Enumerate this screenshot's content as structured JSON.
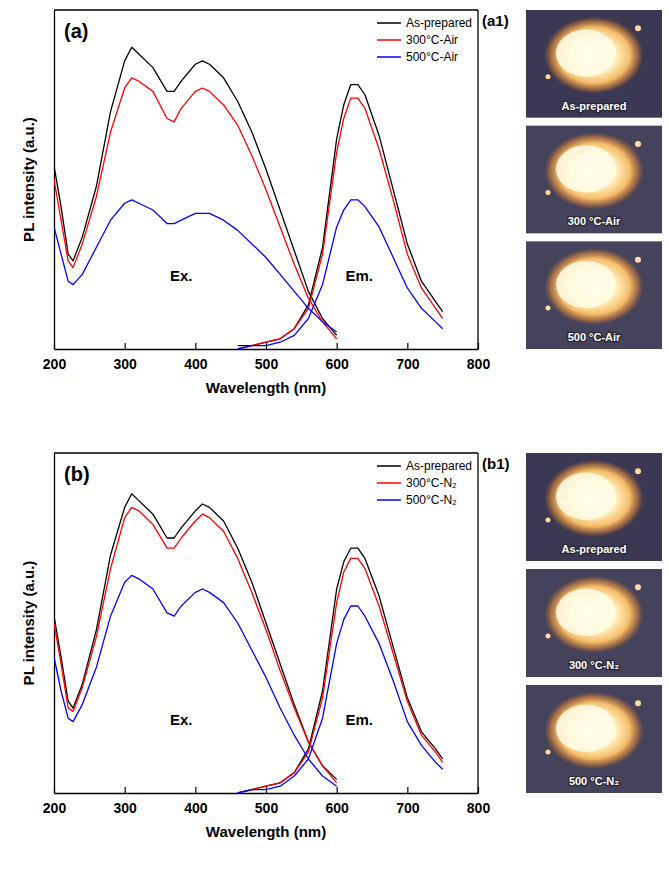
{
  "chart_data": [
    {
      "type": "line",
      "panel_label": "(a)",
      "xlabel": "Wavelength (nm)",
      "ylabel": "PL intensity (a.u.)",
      "annotations": [
        "Ex.",
        "Em."
      ],
      "xlim": [
        200,
        800
      ],
      "xticks": [
        200,
        300,
        400,
        500,
        600,
        700,
        800
      ],
      "ylim": [
        0,
        100
      ],
      "tick_labels": "x",
      "legend": "upper right",
      "excitation_x": [
        200,
        210,
        220,
        227,
        240,
        260,
        280,
        300,
        310,
        320,
        340,
        360,
        370,
        380,
        400,
        410,
        420,
        440,
        460,
        480,
        500,
        520,
        540,
        560,
        580,
        600
      ],
      "emission_x": [
        460,
        480,
        500,
        520,
        540,
        560,
        580,
        600,
        610,
        620,
        630,
        640,
        660,
        680,
        700,
        720,
        740,
        750
      ],
      "series": [
        {
          "name": "As-prepared",
          "color": "#000000",
          "excitation": [
            54,
            42,
            28,
            26,
            33,
            48,
            70,
            85,
            89,
            87,
            83,
            76,
            76,
            79,
            84,
            85,
            84,
            80,
            73,
            64,
            53,
            41,
            29,
            17,
            9,
            4
          ],
          "emission": [
            1,
            1,
            2,
            3,
            6,
            13,
            30,
            62,
            72,
            78,
            78,
            75,
            63,
            47,
            31,
            20,
            14,
            11
          ]
        },
        {
          "name": "300°C-Air",
          "color": "#ff0000",
          "excitation": [
            50,
            38,
            26,
            24,
            31,
            45,
            64,
            77,
            80,
            79,
            76,
            68,
            67,
            71,
            76,
            77,
            76,
            72,
            66,
            57,
            47,
            36,
            25,
            15,
            8,
            3
          ],
          "emission": [
            0,
            1,
            2,
            3,
            6,
            12,
            28,
            58,
            68,
            74,
            74,
            71,
            59,
            44,
            28,
            18,
            12,
            9
          ]
        },
        {
          "name": "500°C-Air",
          "color": "#0000ff",
          "excitation": [
            36,
            28,
            20,
            19,
            22,
            30,
            38,
            43,
            44,
            43,
            41,
            37,
            37,
            38,
            40,
            40,
            40,
            38,
            35,
            31,
            27,
            22,
            17,
            12,
            8,
            5
          ],
          "emission": [
            0,
            1,
            1,
            2,
            4,
            9,
            19,
            36,
            41,
            44,
            44,
            42,
            36,
            27,
            18,
            12,
            8,
            6
          ]
        }
      ]
    },
    {
      "type": "line",
      "panel_label": "(b)",
      "xlabel": "Wavelength (nm)",
      "ylabel": "PL intensity (a.u.)",
      "annotations": [
        "Ex.",
        "Em."
      ],
      "xlim": [
        200,
        800
      ],
      "xticks": [
        200,
        300,
        400,
        500,
        600,
        700,
        800
      ],
      "ylim": [
        0,
        100
      ],
      "tick_labels": "x",
      "legend": "upper right",
      "excitation_x": [
        200,
        210,
        220,
        227,
        240,
        260,
        280,
        300,
        310,
        320,
        340,
        360,
        370,
        380,
        400,
        410,
        420,
        440,
        460,
        480,
        500,
        520,
        540,
        560,
        580,
        600
      ],
      "emission_x": [
        460,
        480,
        500,
        520,
        540,
        560,
        580,
        600,
        610,
        620,
        630,
        640,
        660,
        680,
        700,
        720,
        740,
        750
      ],
      "series": [
        {
          "name": "As-prepared",
          "color": "#000000",
          "excitation": [
            52,
            40,
            27,
            25,
            32,
            48,
            70,
            84,
            88,
            86,
            82,
            75,
            75,
            78,
            83,
            85,
            84,
            80,
            72,
            62,
            50,
            38,
            26,
            15,
            8,
            4
          ],
          "emission": [
            0,
            1,
            2,
            3,
            6,
            13,
            30,
            60,
            68,
            72,
            72,
            69,
            58,
            43,
            28,
            18,
            13,
            10
          ]
        },
        {
          "name": "300°C-N₂",
          "color": "#ff0000",
          "excitation": [
            50,
            38,
            25,
            24,
            31,
            46,
            66,
            81,
            84,
            83,
            79,
            72,
            72,
            75,
            80,
            82,
            81,
            77,
            69,
            59,
            48,
            36,
            25,
            15,
            8,
            3
          ],
          "emission": [
            0,
            1,
            2,
            3,
            6,
            12,
            28,
            56,
            65,
            69,
            69,
            66,
            55,
            41,
            27,
            17,
            12,
            9
          ]
        },
        {
          "name": "500°C-N₂",
          "color": "#0000ff",
          "excitation": [
            40,
            30,
            22,
            21,
            26,
            37,
            52,
            62,
            64,
            63,
            60,
            53,
            52,
            55,
            59,
            60,
            59,
            56,
            50,
            42,
            34,
            25,
            17,
            10,
            5,
            2
          ],
          "emission": [
            0,
            1,
            1,
            2,
            5,
            10,
            22,
            44,
            51,
            55,
            55,
            52,
            44,
            33,
            21,
            14,
            9,
            7
          ]
        }
      ]
    }
  ],
  "photo_panels": [
    {
      "label": "(a1)",
      "captions": [
        "As-prepared",
        "300 °C-Air",
        "500 °C-Air"
      ]
    },
    {
      "label": "(b1)",
      "captions": [
        "As-prepared",
        "300 °C-N₂",
        "500 °C-N₂"
      ]
    }
  ]
}
